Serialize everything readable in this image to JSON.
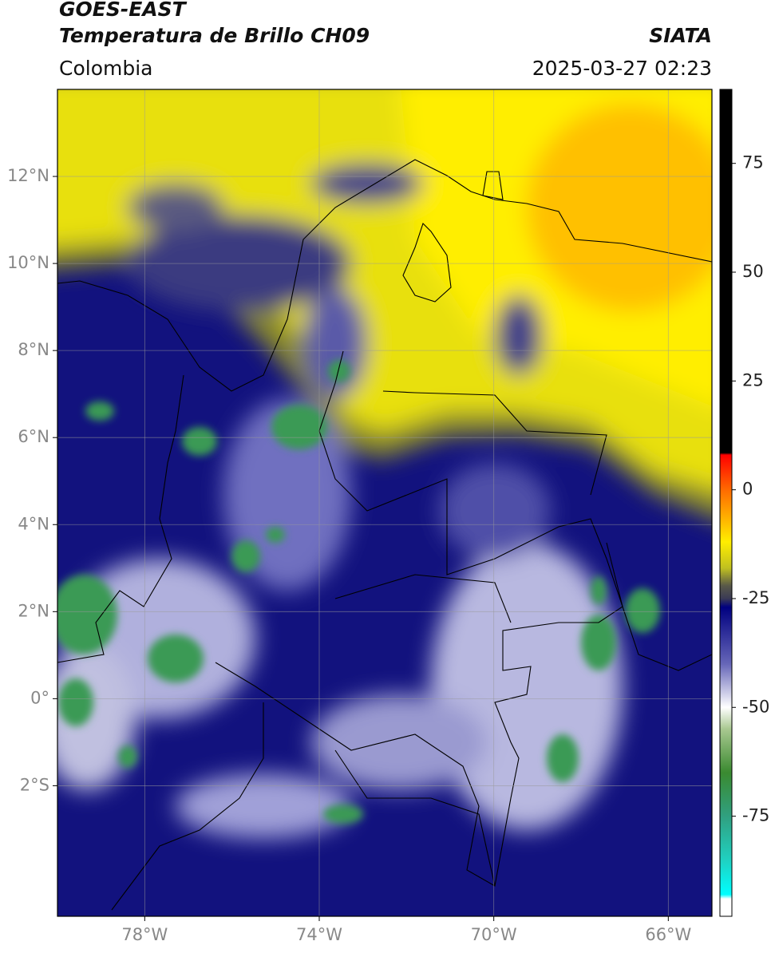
{
  "header": {
    "title": "GOES-EAST",
    "subtitle": "Temperatura de Brillo CH09",
    "source": "SIATA",
    "region": "Colombia",
    "timestamp": "2025-03-27 02:23"
  },
  "map": {
    "xlim": [
      -80,
      -65
    ],
    "ylim": [
      -5,
      14
    ],
    "xticks": [
      {
        "value": -78,
        "label": "78°W"
      },
      {
        "value": -74,
        "label": "74°W"
      },
      {
        "value": -70,
        "label": "70°W"
      },
      {
        "value": -66,
        "label": "66°W"
      }
    ],
    "yticks": [
      {
        "value": 12,
        "label": "12°N"
      },
      {
        "value": 10,
        "label": "10°N"
      },
      {
        "value": 8,
        "label": "8°N"
      },
      {
        "value": 6,
        "label": "6°N"
      },
      {
        "value": 4,
        "label": "4°N"
      },
      {
        "value": 2,
        "label": "2°N"
      },
      {
        "value": 0,
        "label": "0°"
      },
      {
        "value": -2,
        "label": "2°S"
      }
    ],
    "grid": true,
    "colorbar": {
      "clim": [
        -98,
        92
      ],
      "ticks": [
        75,
        50,
        25,
        0,
        -25,
        -50,
        -75
      ],
      "stops": [
        {
          "value": 92,
          "color": "#000000"
        },
        {
          "value": 8.5,
          "color": "#000000"
        },
        {
          "value": 8,
          "color": "#ff0000"
        },
        {
          "value": 0,
          "color": "#ff6a00"
        },
        {
          "value": -12,
          "color": "#ffee00"
        },
        {
          "value": -18,
          "color": "#c0c020"
        },
        {
          "value": -22,
          "color": "#5a5a48"
        },
        {
          "value": -25,
          "color": "#3a3a55"
        },
        {
          "value": -27,
          "color": "#000080"
        },
        {
          "value": -40,
          "color": "#6666b8"
        },
        {
          "value": -50,
          "color": "#ffffff"
        },
        {
          "value": -55,
          "color": "#a8c890"
        },
        {
          "value": -65,
          "color": "#3a8a30"
        },
        {
          "value": -75,
          "color": "#30a080"
        },
        {
          "value": -85,
          "color": "#20d0c0"
        },
        {
          "value": -93,
          "color": "#00ffff"
        },
        {
          "value": -94,
          "color": "#ffffff"
        },
        {
          "value": -98,
          "color": "#ffffff"
        }
      ]
    }
  }
}
